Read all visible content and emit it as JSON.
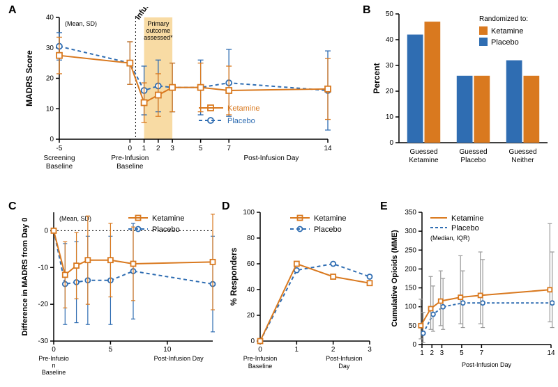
{
  "colors": {
    "ketamine": "#d9791f",
    "placebo": "#2f6db2",
    "axis": "#000000",
    "shade": "#f7d79a",
    "grid": "#bfbfbf",
    "err_ket": "#d9791f",
    "err_pla": "#2f6db2",
    "err_gray": "#9a9a9a",
    "bg": "#ffffff"
  },
  "fonts": {
    "panel_label": 16,
    "axis_label": 12,
    "tick": 10,
    "legend": 11,
    "small": 9
  },
  "panelA": {
    "label": "A",
    "ylabel": "MADRS Score",
    "ylim": [
      0,
      40
    ],
    "yticks": [
      0,
      10,
      20,
      30,
      40
    ],
    "x_positions": [
      -5,
      0,
      1,
      2,
      3,
      5,
      7,
      14
    ],
    "xtick_labels": [
      "-5",
      "0",
      "1",
      "2",
      "3",
      "5",
      "7",
      "14"
    ],
    "x_cat_labels": [
      "Screening\nBaseline",
      "Pre-Infusion\nBaseline",
      "",
      "",
      "",
      "",
      "",
      "Post-Infusion Day"
    ],
    "mean_sd_text": "(Mean, SD)",
    "infusion_text": "Infusion",
    "primary_text": "Primary\noutcome\nassessed*",
    "ketamine": {
      "y": [
        27.5,
        25,
        12,
        14.5,
        17,
        17,
        16,
        16.5
      ],
      "err": [
        6,
        7,
        6.5,
        7,
        8,
        8,
        8,
        10
      ]
    },
    "placebo": {
      "y": [
        30.5,
        25,
        16,
        17.5,
        17,
        17,
        18.5,
        16
      ],
      "err": [
        4.5,
        7,
        8,
        8.5,
        8,
        9,
        11,
        13
      ]
    },
    "shade_x": [
      1,
      3
    ],
    "legend": {
      "ketamine": "Ketamine",
      "placebo": "Placebo"
    }
  },
  "panelB": {
    "label": "B",
    "ylabel": "Percent",
    "ylim": [
      0,
      50
    ],
    "yticks": [
      0,
      10,
      20,
      30,
      40,
      50
    ],
    "title": "Randomized to:",
    "legend": {
      "ketamine": "Ketamine",
      "placebo": "Placebo"
    },
    "groups": [
      "Guessed\nKetamine",
      "Guessed\nPlacebo",
      "Guessed\nNeither"
    ],
    "placebo_vals": [
      42,
      26,
      32
    ],
    "ketamine_vals": [
      47,
      26,
      26
    ]
  },
  "panelC": {
    "label": "C",
    "ylabel": "Difference in MADRS from Day 0",
    "ylim": [
      -30,
      5
    ],
    "yticks": [
      -30,
      -20,
      -10,
      0
    ],
    "x_positions": [
      0,
      1,
      2,
      3,
      5,
      7,
      14
    ],
    "xticks": [
      0,
      5,
      10
    ],
    "xtick_labels_top": [
      "0",
      "5",
      "10"
    ],
    "x_cat_left": "Pre-Infusio\nn\nBaseline",
    "x_cat_right": "Post-Infusion Day",
    "mean_sd_text": "(Mean, SD)",
    "ketamine": {
      "y": [
        0,
        -12,
        -9.5,
        -8,
        -8,
        -9,
        -8.5
      ],
      "err": [
        0,
        9,
        9,
        12,
        10,
        10,
        13
      ]
    },
    "placebo": {
      "y": [
        0,
        -14.5,
        -14,
        -13.5,
        -13.5,
        -11,
        -14.5
      ],
      "err": [
        0,
        11,
        11,
        12,
        12,
        13,
        13
      ]
    },
    "legend": {
      "ketamine": "Ketamine",
      "placebo": "Placebo"
    }
  },
  "panelD": {
    "label": "D",
    "ylabel": "% Responders",
    "ylim": [
      0,
      100
    ],
    "yticks": [
      0,
      20,
      40,
      60,
      80,
      100
    ],
    "x_positions": [
      0,
      1,
      2,
      3
    ],
    "xtick_labels": [
      "0",
      "1",
      "2",
      "3"
    ],
    "x_cat_left": "Pre-Infusion\nBaseline",
    "x_cat_right": "Post-Infusion\nDay",
    "ketamine": {
      "y": [
        0,
        60,
        50,
        45
      ]
    },
    "placebo": {
      "y": [
        0,
        55,
        60,
        50
      ]
    },
    "legend": {
      "ketamine": "Ketamine",
      "placebo": "Placebo"
    }
  },
  "panelE": {
    "label": "E",
    "ylabel": "Cumulative Opioids (MME)",
    "ylim": [
      0,
      350
    ],
    "yticks": [
      0,
      50,
      100,
      150,
      200,
      250,
      300,
      350
    ],
    "x_positions": [
      1,
      2,
      3,
      5,
      7,
      14
    ],
    "xtick_labels": [
      "1",
      "2",
      "3",
      "5",
      "7",
      "14"
    ],
    "x_cat": "Post-Infusion Day",
    "median_iqr_text": "(Median, IQR)",
    "ketamine": {
      "y": [
        50,
        95,
        115,
        125,
        130,
        145
      ],
      "lo": [
        15,
        40,
        50,
        55,
        55,
        60
      ],
      "hi": [
        120,
        180,
        195,
        235,
        245,
        320
      ]
    },
    "placebo": {
      "y": [
        30,
        80,
        100,
        110,
        110,
        110
      ],
      "lo": [
        5,
        35,
        40,
        45,
        45,
        45
      ],
      "hi": [
        85,
        155,
        175,
        195,
        225,
        245
      ]
    },
    "legend": {
      "ketamine": "Ketamine",
      "placebo": "Placebo"
    }
  }
}
